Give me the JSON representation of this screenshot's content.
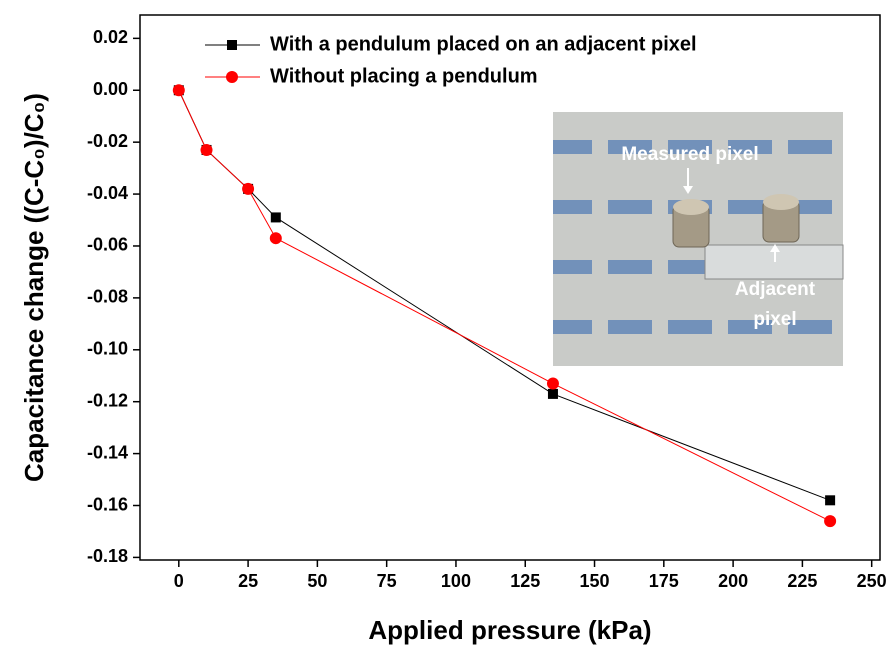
{
  "chart_data": {
    "type": "line",
    "x_label": "Applied pressure (kPa)",
    "y_label": "Capacitance change ((C-C₀)/C₀)",
    "x": [
      0,
      10,
      25,
      35,
      135,
      235
    ],
    "series": [
      {
        "name": "With a pendulum placed on an adjacent pixel",
        "color": "#000000",
        "marker": "square",
        "values": [
          0,
          -0.023,
          -0.038,
          -0.049,
          -0.117,
          -0.158
        ]
      },
      {
        "name": "Without placing a pendulum",
        "color": "#ff0000",
        "marker": "circle",
        "values": [
          0,
          -0.023,
          -0.038,
          -0.057,
          -0.113,
          -0.166
        ]
      }
    ],
    "xlim": [
      -14,
      253
    ],
    "xticks": [
      0,
      25,
      50,
      75,
      100,
      125,
      150,
      175,
      200,
      225,
      250
    ],
    "ylim": [
      -0.181,
      0.029
    ],
    "yticks": [
      -0.18,
      -0.16,
      -0.14,
      -0.12,
      {
        "value": -0.1,
        "label": "-0.10"
      },
      -0.08,
      -0.06,
      -0.04,
      -0.02,
      {
        "value": 0,
        "label": "0.00"
      },
      0.02
    ],
    "legend": "upper left",
    "annotations": [
      "Measured pixel",
      "Adjacent",
      "pixel"
    ]
  }
}
